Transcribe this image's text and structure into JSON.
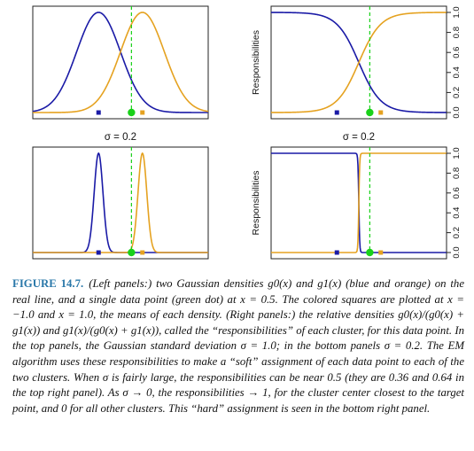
{
  "chart_data": [
    {
      "type": "line",
      "panel": "top-left",
      "sigma": 1.0,
      "series": [
        {
          "description": "Gaussian density g0(x)",
          "color": "#1a1aa6",
          "mean": -1.0
        },
        {
          "description": "Gaussian density g1(x)",
          "color": "#e5a220",
          "mean": 1.0
        }
      ],
      "data_point_x": 0.5,
      "grid": false,
      "xlim": [
        -4,
        4
      ]
    },
    {
      "type": "line",
      "panel": "top-right",
      "sigma": 1.0,
      "ylabel": "Responsibilities",
      "ylim": [
        0,
        1
      ],
      "yticks": [
        "0.0",
        "0.2",
        "0.4",
        "0.6",
        "0.8",
        "1.0"
      ],
      "responsibilities_at_point": [
        0.36,
        0.64
      ],
      "data_point_x": 0.5,
      "xlim": [
        -4,
        4
      ]
    },
    {
      "type": "line",
      "panel": "bottom-left",
      "sigma": 0.2,
      "title": "σ = 0.2",
      "data_point_x": 0.5,
      "xlim": [
        -4,
        4
      ]
    },
    {
      "type": "line",
      "panel": "bottom-right",
      "sigma": 0.2,
      "title": "σ = 0.2",
      "ylabel": "Responsibilities",
      "ylim": [
        0,
        1
      ],
      "yticks": [
        "0.0",
        "0.2",
        "0.4",
        "0.6",
        "0.8",
        "1.0"
      ],
      "data_point_x": 0.5,
      "xlim": [
        -4,
        4
      ]
    }
  ],
  "colors": {
    "blue": "#1a1aa6",
    "orange": "#e5a220",
    "green": "#19d119"
  },
  "caption": {
    "label": "FIGURE 14.7.",
    "text": "(Left panels:) two Gaussian densities g0(x) and g1(x) (blue and orange) on the real line, and a single data point (green dot) at x = 0.5. The colored squares are plotted at x = −1.0 and x = 1.0, the means of each density. (Right panels:) the relative densities g0(x)/(g0(x) + g1(x)) and g1(x)/(g0(x) + g1(x)), called the “responsibilities” of each cluster, for this data point. In the top panels, the Gaussian standard deviation σ = 1.0; in the bottom panels σ = 0.2. The EM algorithm uses these responsibilities to make a “soft” assignment of each data point to each of the two clusters. When σ is fairly large, the responsibilities can be near 0.5 (they are 0.36 and 0.64 in the top right panel). As σ → 0, the responsibilities → 1, for the cluster center closest to the target point, and 0 for all other clusters. This “hard” assignment is seen in the bottom right panel."
  }
}
